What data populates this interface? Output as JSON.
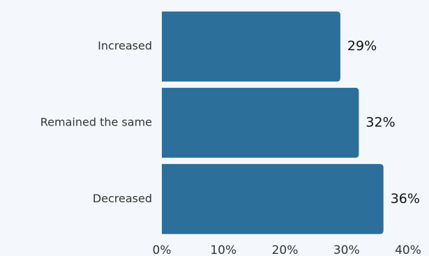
{
  "chart_data": {
    "type": "bar",
    "orientation": "horizontal",
    "categories": [
      "Increased",
      "Remained the same",
      "Decreased"
    ],
    "values": [
      29,
      32,
      36
    ],
    "value_labels": [
      "29%",
      "32%",
      "36%"
    ],
    "xlim": [
      0,
      40
    ],
    "x_ticks": [
      0,
      10,
      20,
      30,
      40
    ],
    "x_tick_labels": [
      "0%",
      "10%",
      "20%",
      "30%",
      "40%"
    ],
    "title": "",
    "xlabel": "",
    "ylabel": "",
    "grid": false,
    "legend": "none",
    "bar_color": "#2b6f9a",
    "background_color": "#f4f7fb"
  }
}
